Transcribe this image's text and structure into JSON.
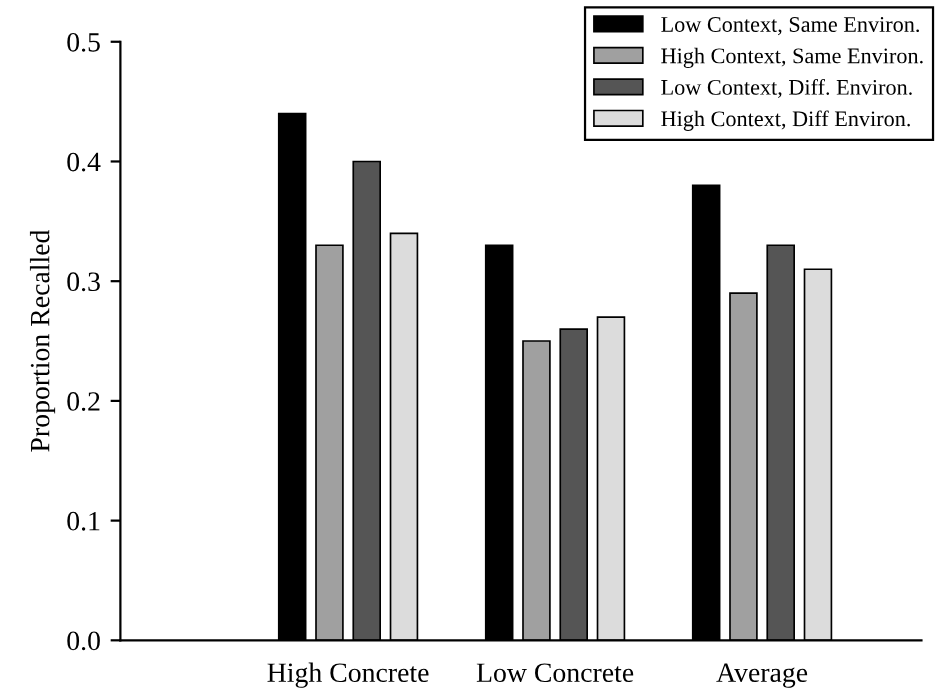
{
  "chart_data": {
    "type": "bar",
    "ylabel": "Proportion Recalled",
    "categories": [
      "High Concrete",
      "Low Concrete",
      "Average"
    ],
    "series": [
      {
        "name": "Low Context, Same Environ.",
        "color": "#000000",
        "values": [
          0.44,
          0.33,
          0.38
        ]
      },
      {
        "name": "High Context, Same Environ.",
        "color": "#a0a0a0",
        "values": [
          0.33,
          0.25,
          0.29
        ]
      },
      {
        "name": "Low Context, Diff. Environ.",
        "color": "#555555",
        "values": [
          0.4,
          0.26,
          0.33
        ]
      },
      {
        "name": "High Context, Diff Environ.",
        "color": "#dcdcdc",
        "values": [
          0.34,
          0.27,
          0.31
        ]
      }
    ],
    "ylim": [
      0,
      0.5
    ],
    "yticks": [
      {
        "value": 0,
        "label": "0.0"
      },
      0.1,
      0.2,
      0.3,
      0.4,
      0.5
    ],
    "grid": false,
    "legend": "top right"
  }
}
